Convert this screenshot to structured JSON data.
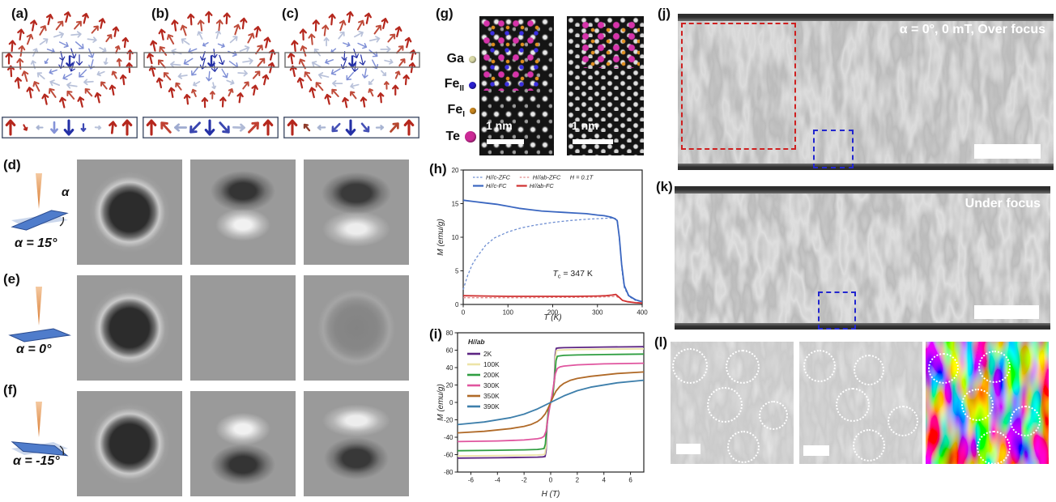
{
  "panels": {
    "a": {
      "label": "(a)"
    },
    "b": {
      "label": "(b)"
    },
    "c": {
      "label": "(c)"
    },
    "d": {
      "label": "(d)",
      "alpha": "α = 15°",
      "angle_symbol": "α"
    },
    "e": {
      "label": "(e)",
      "alpha": "α = 0°"
    },
    "f": {
      "label": "(f)",
      "alpha": "α = -15°"
    },
    "g": {
      "label": "(g)",
      "atoms": [
        {
          "name": "Ga",
          "sub": "",
          "color": "#d9d9a6"
        },
        {
          "name": "Fe",
          "sub": "II",
          "color": "#2a1fd0"
        },
        {
          "name": "Fe",
          "sub": "I",
          "color": "#c8861e"
        },
        {
          "name": "Te",
          "sub": "",
          "color": "#cc2a96"
        }
      ],
      "scale_bar_left": "1 nm",
      "scale_bar_right": "1 nm"
    },
    "h": {
      "label": "(h)"
    },
    "i": {
      "label": "(i)"
    },
    "j": {
      "label": "(j)",
      "annotation": "α = 0°, 0 mT, Over focus"
    },
    "k": {
      "label": "(k)",
      "annotation": "Under focus"
    },
    "l": {
      "label": "(l)",
      "circles": {
        "img1": [
          [
            0.16,
            0.2,
            0.145
          ],
          [
            0.585,
            0.205,
            0.138
          ],
          [
            0.44,
            0.517,
            0.145
          ],
          [
            0.836,
            0.603,
            0.12
          ],
          [
            0.59,
            0.86,
            0.132
          ]
        ],
        "img2": [
          [
            0.164,
            0.199,
            0.132
          ],
          [
            0.566,
            0.232,
            0.125
          ],
          [
            0.434,
            0.517,
            0.138
          ],
          [
            0.842,
            0.649,
            0.125
          ],
          [
            0.566,
            0.848,
            0.132
          ]
        ],
        "img3": [
          [
            0.145,
            0.219,
            0.125
          ],
          [
            0.559,
            0.205,
            0.132
          ],
          [
            0.421,
            0.517,
            0.132
          ],
          [
            0.811,
            0.649,
            0.125
          ],
          [
            0.55,
            0.868,
            0.138
          ]
        ]
      }
    }
  },
  "spin_diagrams": {
    "rings": [
      {
        "r": 0.16,
        "n": 5,
        "theta": 160
      },
      {
        "r": 0.38,
        "n": 9,
        "theta": 120
      },
      {
        "r": 0.6,
        "n": 13,
        "theta": 80
      },
      {
        "r": 0.82,
        "n": 17,
        "theta": 40
      },
      {
        "r": 1.0,
        "n": 21,
        "theta": 14
      }
    ],
    "panels": {
      "a": {
        "helicity": 90
      },
      "b": {
        "helicity": 0
      },
      "c": {
        "helicity": 45
      }
    },
    "palette": {
      "up": "#b5271d",
      "up_mid": "#bf4b3a",
      "equator": "#b9c2da",
      "down_mid": "#7f8fd6",
      "down": "#2430a6"
    }
  },
  "cross_sections": {
    "a": [
      {
        "rot": 0,
        "c": "#b5271d",
        "s": 1.0
      },
      {
        "rot": 152,
        "c": "#b5271d",
        "s": 0.42
      },
      {
        "rot": -90,
        "c": "#a8b4d2",
        "s": 0.42
      },
      {
        "rot": 180,
        "c": "#8593d8",
        "s": 0.75
      },
      {
        "rot": 180,
        "c": "#2430a6",
        "s": 1.0
      },
      {
        "rot": 180,
        "c": "#3d49b4",
        "s": 0.5
      },
      {
        "rot": 95,
        "c": "#b8c2da",
        "s": 0.38
      },
      {
        "rot": 6,
        "c": "#b5271d",
        "s": 0.8
      },
      {
        "rot": 0,
        "c": "#b5271d",
        "s": 1.0
      }
    ],
    "b": [
      {
        "rot": 0,
        "c": "#b5271d",
        "s": 1.0
      },
      {
        "rot": -42,
        "c": "#c04032",
        "s": 0.92
      },
      {
        "rot": -90,
        "c": "#9fabd0",
        "s": 0.78
      },
      {
        "rot": -136,
        "c": "#3a46b0",
        "s": 0.92
      },
      {
        "rot": 180,
        "c": "#2430a6",
        "s": 1.0
      },
      {
        "rot": 138,
        "c": "#3a46b0",
        "s": 0.92
      },
      {
        "rot": 92,
        "c": "#b0bad6",
        "s": 0.78
      },
      {
        "rot": 44,
        "c": "#c04032",
        "s": 0.92
      },
      {
        "rot": 0,
        "c": "#b5271d",
        "s": 1.0
      }
    ],
    "c": [
      {
        "rot": 0,
        "c": "#b5271d",
        "s": 1.0
      },
      {
        "rot": -40,
        "c": "#8f3a2a",
        "s": 0.55
      },
      {
        "rot": -92,
        "c": "#a8b4d2",
        "s": 0.5
      },
      {
        "rot": -136,
        "c": "#4450b5",
        "s": 0.72
      },
      {
        "rot": 180,
        "c": "#2430a6",
        "s": 1.0
      },
      {
        "rot": 140,
        "c": "#4450b5",
        "s": 0.72
      },
      {
        "rot": 88,
        "c": "#a8b4d2",
        "s": 0.48
      },
      {
        "rot": 42,
        "c": "#b5462e",
        "s": 0.78
      },
      {
        "rot": 0,
        "c": "#b5271d",
        "s": 1.0
      }
    ]
  },
  "ltem_grid": {
    "rows": [
      [
        "dark-core-ring",
        "dark-top-bright-bottom",
        "dark-arc-bright-crescent"
      ],
      [
        "dark-core-ring",
        "blank",
        "faint-dark-disk"
      ],
      [
        "dark-core-ring",
        "bright-top-dark-bottom",
        "bright-arc-dark-bottom"
      ]
    ]
  },
  "chart_data": [
    {
      "id": "h",
      "type": "line",
      "xlabel": "T (K)",
      "ylabel": "M (emu/g)",
      "xlim": [
        0,
        400
      ],
      "ylim": [
        0,
        20
      ],
      "xticks": [
        0,
        100,
        200,
        300,
        400
      ],
      "yticks": [
        0,
        5,
        10,
        15,
        20
      ],
      "grid": false,
      "legend_position": "top-inside",
      "legend_rows": [
        [
          {
            "label": "H//c-ZFC",
            "color": "#6f8fd2",
            "dash": true
          },
          {
            "label": "H//ab-ZFC",
            "color": "#e08a8a",
            "dash": true
          },
          {
            "label": "H = 0.1T"
          }
        ],
        [
          {
            "label": "H//c-FC",
            "color": "#3a66c0",
            "dash": false
          },
          {
            "label": "H//ab-FC",
            "color": "#d03030",
            "dash": false
          }
        ]
      ],
      "annotation": {
        "main": "T",
        "sub": "c",
        "rest": " = 347 K",
        "x": 200,
        "y": 4.2
      },
      "series": [
        {
          "name": "H//c-ZFC",
          "color": "#6f8fd2",
          "dash": "3 2.4",
          "width": 1.3,
          "x": [
            0,
            5,
            10,
            20,
            30,
            50,
            70,
            100,
            130,
            160,
            200,
            240,
            280,
            310,
            330,
            340,
            345,
            350,
            355,
            360,
            370,
            385,
            400
          ],
          "y": [
            2.2,
            3.3,
            4.3,
            5.9,
            7.0,
            8.8,
            9.9,
            10.8,
            11.4,
            11.8,
            12.2,
            12.5,
            12.7,
            12.8,
            12.85,
            12.8,
            12.3,
            9.0,
            5.0,
            2.5,
            1.2,
            0.6,
            0.4
          ]
        },
        {
          "name": "H//ab-ZFC",
          "color": "#e08a8a",
          "dash": "3 2.4",
          "width": 1.3,
          "x": [
            0,
            50,
            100,
            150,
            200,
            250,
            300,
            330,
            342,
            352,
            362,
            380,
            400
          ],
          "y": [
            1.0,
            1.0,
            1.0,
            1.0,
            1.05,
            1.05,
            1.1,
            1.15,
            1.2,
            0.8,
            0.5,
            0.3,
            0.2
          ]
        },
        {
          "name": "H//c-FC",
          "color": "#3a66c0",
          "dash": null,
          "width": 1.8,
          "x": [
            0,
            25,
            50,
            75,
            100,
            125,
            150,
            175,
            200,
            225,
            250,
            275,
            300,
            315,
            330,
            338,
            344,
            349,
            354,
            360,
            370,
            385,
            400
          ],
          "y": [
            15.5,
            15.3,
            15.1,
            14.9,
            14.6,
            14.3,
            14.1,
            13.9,
            13.8,
            13.7,
            13.6,
            13.5,
            13.3,
            13.2,
            13.0,
            12.8,
            12.5,
            10.0,
            6.0,
            2.8,
            1.3,
            0.7,
            0.4
          ]
        },
        {
          "name": "H//ab-FC",
          "color": "#d03030",
          "dash": null,
          "width": 1.8,
          "x": [
            0,
            50,
            100,
            150,
            200,
            250,
            300,
            320,
            333,
            341,
            348,
            356,
            368,
            385,
            400
          ],
          "y": [
            1.3,
            1.25,
            1.2,
            1.2,
            1.2,
            1.2,
            1.25,
            1.3,
            1.4,
            1.5,
            1.1,
            0.6,
            0.4,
            0.25,
            0.2
          ]
        }
      ]
    },
    {
      "id": "i",
      "type": "line",
      "xlabel": "H (T)",
      "ylabel": "M (emu/g)",
      "xlim": [
        -7,
        7
      ],
      "ylim": [
        -80,
        80
      ],
      "xticks": [
        -6,
        -4,
        -2,
        0,
        2,
        4,
        6
      ],
      "yticks": [
        -80,
        -60,
        -40,
        -20,
        0,
        20,
        40,
        60,
        80
      ],
      "grid": false,
      "legend_position": "top-left-inside",
      "legend_title": "H//ab",
      "series": [
        {
          "name": "2K",
          "color": "#5c2483",
          "dash": null,
          "width": 1.8,
          "x": [
            -7,
            -4,
            -2,
            -1,
            -0.6,
            -0.42,
            -0.34,
            -0.28,
            -0.15,
            0,
            0.15,
            0.28,
            0.34,
            0.42,
            0.6,
            1,
            2,
            4,
            7
          ],
          "y": [
            -64,
            -63.6,
            -63.2,
            -62.9,
            -62.6,
            -62.2,
            -55,
            -28,
            -7,
            0,
            7,
            28,
            55,
            62.2,
            62.6,
            62.9,
            63.2,
            63.6,
            64
          ]
        },
        {
          "name": "100K",
          "color": "#ede4a8",
          "dash": null,
          "width": 1.8,
          "x": [
            -7,
            -4,
            -2,
            -1,
            -0.6,
            -0.44,
            -0.36,
            -0.3,
            -0.15,
            0,
            0.15,
            0.3,
            0.36,
            0.44,
            0.6,
            1,
            2,
            4,
            7
          ],
          "y": [
            -61.5,
            -61.1,
            -60.7,
            -60.4,
            -60,
            -59.5,
            -52,
            -26,
            -6.5,
            0,
            6.5,
            26,
            52,
            59.5,
            60,
            60.4,
            60.7,
            61.1,
            61.5
          ]
        },
        {
          "name": "200K",
          "color": "#2f9e41",
          "dash": null,
          "width": 1.8,
          "x": [
            -7,
            -4,
            -2,
            -1,
            -0.7,
            -0.5,
            -0.4,
            -0.3,
            -0.15,
            0,
            0.15,
            0.3,
            0.4,
            0.5,
            0.7,
            1,
            2,
            4,
            7
          ],
          "y": [
            -55.5,
            -55,
            -54.5,
            -54,
            -53.5,
            -53,
            -48,
            -28,
            -7,
            0,
            7,
            28,
            48,
            53,
            53.5,
            54,
            54.5,
            55,
            55.5
          ]
        },
        {
          "name": "300K",
          "color": "#e0559f",
          "dash": null,
          "width": 1.8,
          "x": [
            -7,
            -4,
            -2,
            -1,
            -0.7,
            -0.5,
            -0.35,
            -0.2,
            -0.1,
            0,
            0.1,
            0.2,
            0.35,
            0.5,
            0.7,
            1,
            2,
            4,
            7
          ],
          "y": [
            -45,
            -44.3,
            -43.2,
            -41.8,
            -40.8,
            -39,
            -33,
            -18,
            -8,
            0,
            8,
            18,
            33,
            39,
            40.8,
            41.8,
            43.2,
            44.3,
            45
          ]
        },
        {
          "name": "350K",
          "color": "#b06a28",
          "dash": null,
          "width": 1.8,
          "x": [
            -7,
            -5,
            -3,
            -2,
            -1.5,
            -1,
            -0.7,
            -0.4,
            -0.2,
            0,
            0.2,
            0.4,
            0.7,
            1,
            1.5,
            2,
            3,
            5,
            7
          ],
          "y": [
            -35,
            -33.2,
            -30,
            -27.5,
            -25.5,
            -22,
            -18.5,
            -13,
            -7,
            0,
            7,
            13,
            18.5,
            22,
            25.5,
            27.5,
            30,
            33.2,
            35
          ]
        },
        {
          "name": "390K",
          "color": "#3e7fab",
          "dash": null,
          "width": 1.8,
          "x": [
            -7,
            -5,
            -3,
            -2,
            -1,
            -0.5,
            0,
            0.5,
            1,
            2,
            3,
            5,
            7
          ],
          "y": [
            -25.5,
            -22.5,
            -17.5,
            -13.5,
            -7.5,
            -3.8,
            0,
            3.8,
            7.5,
            13.5,
            17.5,
            22.5,
            25.5
          ]
        }
      ]
    }
  ]
}
